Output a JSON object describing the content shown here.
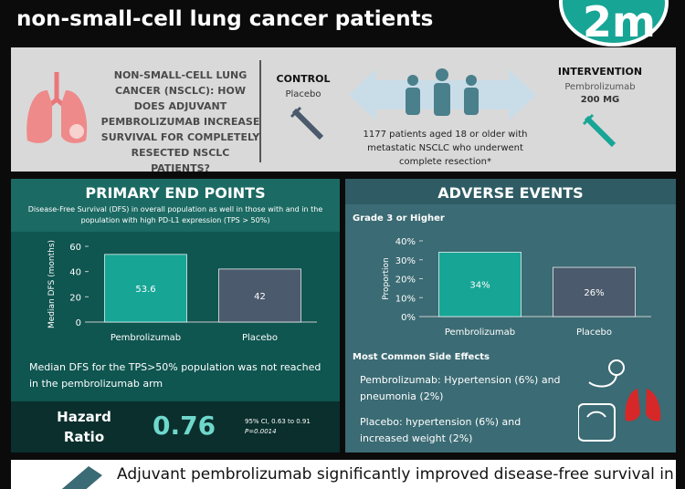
{
  "header": {
    "title": "non-small-cell lung cancer patients",
    "logo": "2m"
  },
  "study": {
    "question": "NON-SMALL-CELL LUNG CANCER (NSCLC): HOW DOES ADJUVANT PEMBROLIZUMAB INCREASE SURVIVAL FOR COMPLETELY RESECTED NSCLC PATIENTS?",
    "control_label": "CONTROL",
    "control_drug": "Placebo",
    "population": "1177 patients aged 18 or older with metastatic NSCLC who underwent complete resection*",
    "intervention_label": "INTERVENTION",
    "intervention_drug": "Pembrolizumab",
    "intervention_dose": "200 MG"
  },
  "primary": {
    "heading": "PRIMARY END POINTS",
    "subtitle": "Disease-Free Survival (DFS) in overall population as well in those with and in the population with high PD-L1 expression (TPS > 50%)",
    "note": "Median DFS for the TPS>50% population was not reached in the pembrolizumab arm",
    "hr_label": "Hazard Ratio",
    "hr_value": "0.76",
    "hr_ci": "95% CI, 0.63 to 0.91",
    "hr_p": "P=0.0014"
  },
  "adverse": {
    "heading": "ADVERSE EVENTS",
    "side_heading": "Most Common Side Effects",
    "pembro_effects": "Pembrolizumab: Hypertension (6%) and pneumonia (2%)",
    "placebo_effects": "Placebo: hypertension (6%) and increased weight (2%)"
  },
  "chart_data": [
    {
      "type": "bar",
      "y_label": "Median DFS (months)",
      "categories": [
        "Pembrolizumab",
        "Placebo"
      ],
      "values": [
        53.6,
        42
      ],
      "colors": [
        "#17a596",
        "#4b5a6c"
      ],
      "ylim": [
        0,
        60
      ],
      "yticks": [
        0,
        20,
        40,
        60
      ]
    },
    {
      "type": "bar",
      "title": "Grade 3 or Higher",
      "y_label": "Proportion",
      "categories": [
        "Pembrolizumab",
        "Placebo"
      ],
      "values": [
        34,
        26
      ],
      "value_labels": [
        "34%",
        "26%"
      ],
      "colors": [
        "#17a596",
        "#4b5a6c"
      ],
      "ylim": [
        0,
        40
      ],
      "yticks": [
        {
          "value": 0,
          "label": "0%"
        },
        {
          "value": 10,
          "label": "10%"
        },
        {
          "value": 20,
          "label": "20%"
        },
        {
          "value": 30,
          "label": "30%"
        },
        {
          "value": 40,
          "label": "40%"
        }
      ]
    }
  ],
  "footer": {
    "text": "Adjuvant pembrolizumab significantly improved disease-free survival in"
  }
}
